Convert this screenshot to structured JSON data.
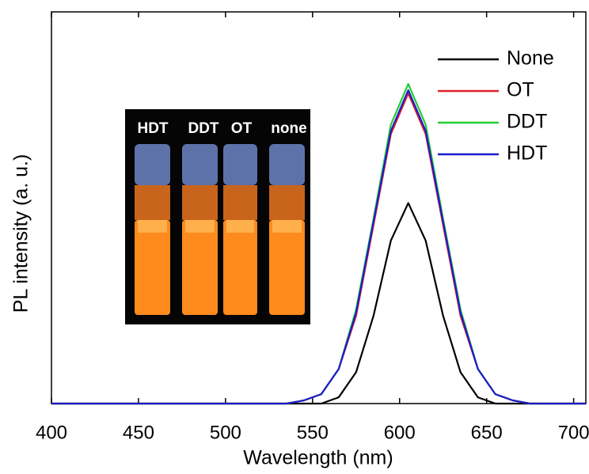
{
  "chart_data": {
    "type": "line",
    "x_label": "Wavelength (nm)",
    "y_label": "PL intensity (a. u.)",
    "x": [
      400,
      525,
      535,
      545,
      555,
      565,
      575,
      585,
      595,
      605,
      615,
      625,
      635,
      645,
      655,
      665,
      675,
      685,
      707
    ],
    "series": [
      {
        "name": "None",
        "color": "#000000",
        "values": [
          0,
          0,
          0,
          0,
          0,
          0.02,
          0.1,
          0.28,
          0.52,
          0.64,
          0.52,
          0.28,
          0.1,
          0.02,
          0,
          0,
          0,
          0,
          0
        ]
      },
      {
        "name": "OT",
        "color": "#e0202a",
        "values": [
          0,
          0,
          0,
          0.01,
          0.03,
          0.11,
          0.28,
          0.57,
          0.86,
          0.99,
          0.86,
          0.57,
          0.28,
          0.11,
          0.03,
          0.01,
          0,
          0,
          0
        ]
      },
      {
        "name": "DDT",
        "color": "#22cc33",
        "values": [
          0,
          0,
          0,
          0.01,
          0.03,
          0.11,
          0.3,
          0.59,
          0.89,
          1.02,
          0.89,
          0.59,
          0.3,
          0.11,
          0.03,
          0.01,
          0,
          0,
          0
        ]
      },
      {
        "name": "HDT",
        "color": "#1c1ccc",
        "values": [
          0,
          0,
          0,
          0.01,
          0.03,
          0.11,
          0.29,
          0.58,
          0.87,
          1.0,
          0.87,
          0.58,
          0.29,
          0.11,
          0.03,
          0.01,
          0,
          0,
          0
        ]
      }
    ],
    "xlim": [
      400,
      707
    ],
    "xticks": [
      400,
      450,
      500,
      550,
      600,
      650,
      700
    ],
    "ylim": [
      0,
      1.25
    ],
    "legend": "upper right",
    "inset_labels": [
      "HDT",
      "DDT",
      "OT",
      "none"
    ]
  }
}
